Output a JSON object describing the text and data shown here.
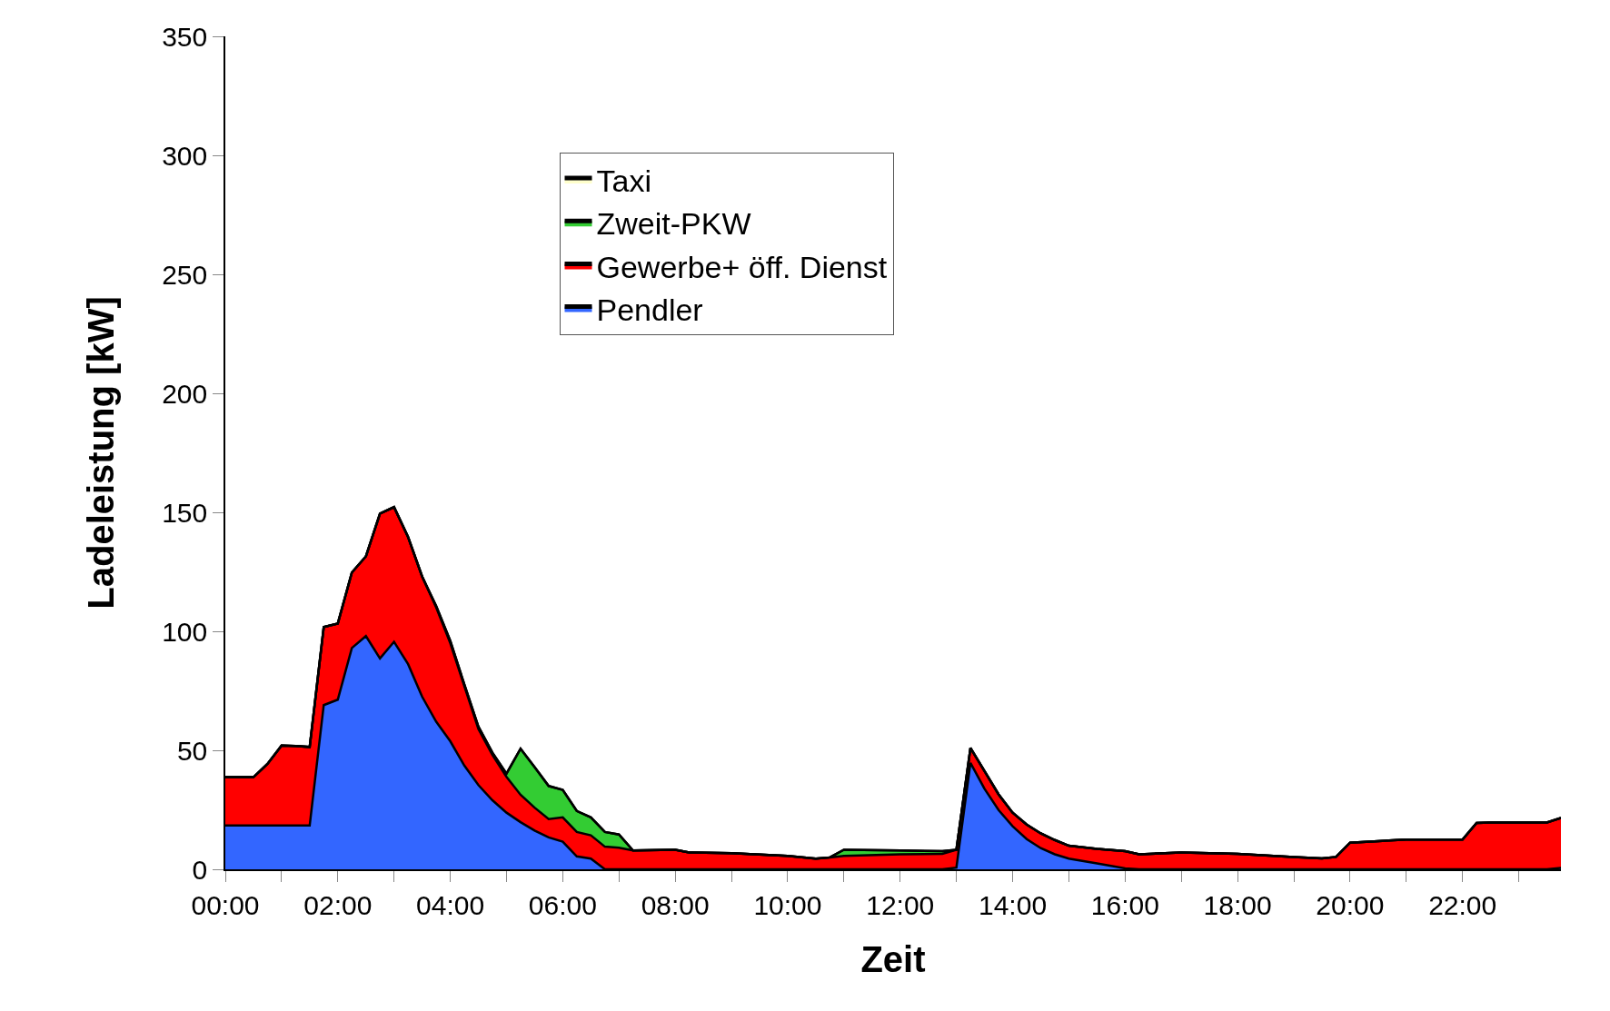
{
  "chart_data": {
    "type": "area",
    "stacked": true,
    "xlabel": "Zeit",
    "ylabel": "Ladeleistung [kW]",
    "x": [
      0,
      0.5,
      0.75,
      1,
      1.25,
      1.5,
      1.75,
      2,
      2.25,
      2.5,
      2.75,
      3,
      3.25,
      3.5,
      3.75,
      4,
      4.25,
      4.5,
      4.75,
      5,
      5.25,
      5.5,
      5.75,
      6,
      6.25,
      6.5,
      6.75,
      7,
      7.25,
      8,
      8.25,
      9,
      10,
      10.5,
      10.75,
      11,
      12,
      12.75,
      13,
      13.25,
      13.5,
      13.75,
      14,
      14.25,
      14.5,
      14.75,
      15,
      15.5,
      16,
      16.25,
      17,
      18,
      19,
      19.5,
      19.75,
      20,
      21,
      22,
      22.25,
      22.5,
      23.5,
      23.75
    ],
    "series": [
      {
        "name": "Pendler",
        "color": "#3366ff",
        "values": [
          18.4,
          18.4,
          18.4,
          18.4,
          18.4,
          18.4,
          69,
          71.3,
          93,
          98,
          88.6,
          95.6,
          86.2,
          72.5,
          62,
          53.8,
          43.6,
          35.4,
          29,
          23.8,
          19.8,
          16.3,
          13.4,
          11.6,
          5.4,
          4.5,
          0,
          0,
          0,
          0,
          0,
          0,
          0,
          0,
          0,
          0,
          0,
          0,
          0.7,
          44.7,
          33.8,
          24.9,
          18.1,
          12.7,
          8.9,
          6.3,
          4.5,
          2.5,
          0.4,
          0,
          0,
          0,
          0,
          0,
          0,
          0,
          0,
          0,
          0,
          0,
          0,
          0.6
        ]
      },
      {
        "name": "Gewerbe+ öff. Dienst",
        "color": "#ff0000",
        "values": [
          20.3,
          20.3,
          25.9,
          33.6,
          33.4,
          33,
          32.8,
          32,
          31.7,
          33.5,
          60.9,
          56.6,
          53.4,
          50.5,
          48,
          41.2,
          33.4,
          23.6,
          19,
          15,
          11.5,
          9.6,
          7.7,
          10.2,
          10.3,
          9.8,
          9.5,
          9.1,
          7.9,
          8.2,
          7.1,
          6.8,
          5.6,
          4.5,
          5,
          5.6,
          6.3,
          6.5,
          7.5,
          6.3,
          7.5,
          6.6,
          5.7,
          6.1,
          6.2,
          6,
          5.4,
          6.1,
          7.2,
          6.3,
          7.1,
          6.5,
          5.2,
          4.6,
          5.2,
          11.2,
          12.5,
          12.5,
          19.5,
          19.7,
          19.7,
          21
        ]
      },
      {
        "name": "Zweit-PKW",
        "color": "#33cc33",
        "values": [
          0,
          0,
          0,
          0,
          0,
          0,
          0,
          0,
          0,
          0,
          0,
          0,
          0,
          0,
          0.6,
          1,
          0.7,
          1,
          1,
          1.4,
          19.4,
          17,
          13.9,
          11.6,
          8.8,
          7.5,
          6.2,
          5.5,
          0,
          0,
          0,
          0,
          0,
          0,
          0,
          2.6,
          1.6,
          1.1,
          0,
          0,
          0,
          0,
          0,
          0,
          0,
          0,
          0,
          0,
          0,
          0,
          0,
          0,
          0,
          0,
          0,
          0,
          0,
          0,
          0,
          0,
          0,
          0
        ]
      },
      {
        "name": "Taxi",
        "color": "#ffffcc",
        "values": [
          null,
          null,
          null,
          null,
          null,
          null,
          null,
          null,
          null,
          null,
          null,
          null,
          null,
          null,
          null,
          null,
          null,
          null,
          null,
          null,
          null,
          null,
          null,
          null,
          null,
          null,
          null,
          null,
          null,
          null,
          null,
          null,
          null,
          null,
          null,
          null,
          null,
          null,
          null,
          null,
          null,
          null,
          null,
          null,
          null,
          null,
          null,
          null,
          null,
          null,
          null,
          null,
          null,
          null,
          null,
          null,
          null,
          null,
          null,
          null,
          null,
          null
        ]
      }
    ],
    "xlim": [
      0,
      23.75
    ],
    "xticks": [
      {
        "value": 0,
        "label": "00:00"
      },
      {
        "value": 1,
        "label": null
      },
      {
        "value": 2,
        "label": "02:00"
      },
      {
        "value": 3,
        "label": null
      },
      {
        "value": 4,
        "label": "04:00"
      },
      {
        "value": 5,
        "label": null
      },
      {
        "value": 6,
        "label": "06:00"
      },
      {
        "value": 7,
        "label": null
      },
      {
        "value": 8,
        "label": "08:00"
      },
      {
        "value": 9,
        "label": null
      },
      {
        "value": 10,
        "label": "10:00"
      },
      {
        "value": 11,
        "label": null
      },
      {
        "value": 12,
        "label": "12:00"
      },
      {
        "value": 13,
        "label": null
      },
      {
        "value": 14,
        "label": "14:00"
      },
      {
        "value": 15,
        "label": null
      },
      {
        "value": 16,
        "label": "16:00"
      },
      {
        "value": 17,
        "label": null
      },
      {
        "value": 18,
        "label": "18:00"
      },
      {
        "value": 19,
        "label": null
      },
      {
        "value": 20,
        "label": "20:00"
      },
      {
        "value": 21,
        "label": null
      },
      {
        "value": 22,
        "label": "22:00"
      },
      {
        "value": 23,
        "label": null
      }
    ],
    "ylim": [
      0,
      350
    ],
    "yticks": [
      0,
      50,
      100,
      150,
      200,
      250,
      300,
      350
    ],
    "legend": "top"
  }
}
